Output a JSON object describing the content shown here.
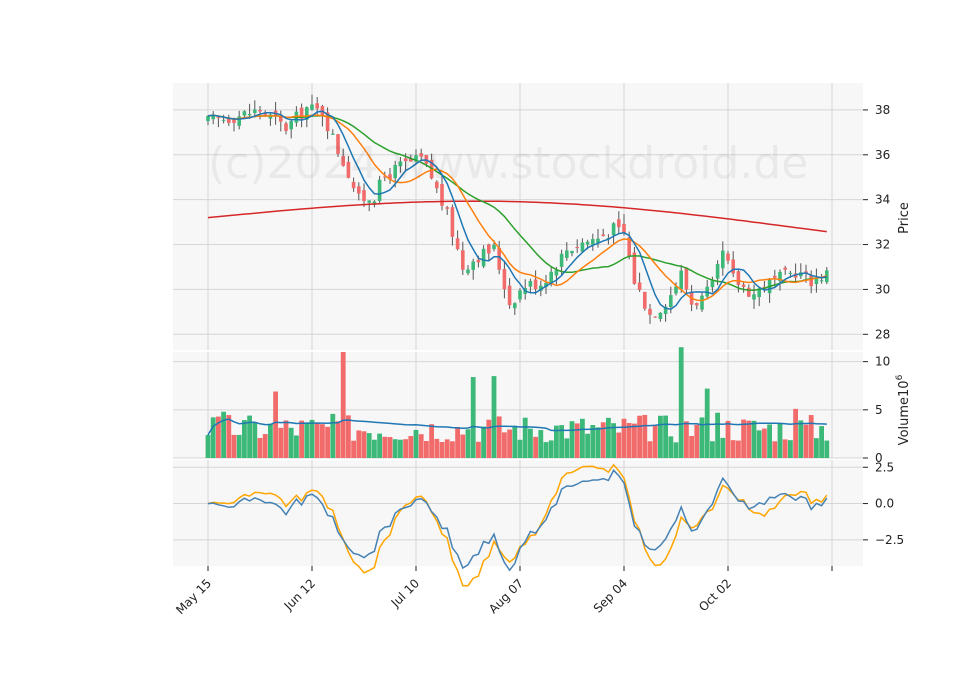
{
  "watermark": "(c)2024 www.stockdroid.de",
  "colors": {
    "up": "#26a69a",
    "up_fill": "#3cb878",
    "down": "#ef5350",
    "down_fill": "#f26b6b",
    "panel_bg": "#f7f7f7",
    "grid": "#d6d6d6",
    "ma_fast": "#1f77b4",
    "ma_mid": "#ff7f0e",
    "ma_slow": "#2ca02c",
    "ma_long": "#d62728",
    "vol_ma": "#1f77b4",
    "osc_a": "#4682b4",
    "osc_b": "#ffa500"
  },
  "chart_data": [
    {
      "panel": "price",
      "type": "candlestick",
      "ylabel": "Price",
      "yticks": [
        28,
        30,
        32,
        34,
        36,
        38
      ],
      "ylim": [
        27.3,
        39.2
      ],
      "xtick_labels": [
        "May 15",
        "Jun 12",
        "Jul 10",
        "Aug 07",
        "Sep 04",
        "Oct 02"
      ],
      "xlim": [
        0,
        120
      ],
      "lines": [
        "ma_fast",
        "ma_mid",
        "ma_slow",
        "ma_long"
      ]
    },
    {
      "panel": "volume",
      "type": "bar",
      "ylabel": "Volume",
      "ylabel_exponent": "6",
      "yticks": [
        0,
        5,
        10
      ],
      "ylim": [
        0,
        11
      ]
    },
    {
      "panel": "oscillator",
      "type": "line",
      "yticks": [
        -2.5,
        0.0,
        2.5
      ],
      "ytick_labels": [
        "−2.5",
        "0.0",
        "2.5"
      ],
      "ylim": [
        -4.3,
        3.0
      ]
    }
  ]
}
